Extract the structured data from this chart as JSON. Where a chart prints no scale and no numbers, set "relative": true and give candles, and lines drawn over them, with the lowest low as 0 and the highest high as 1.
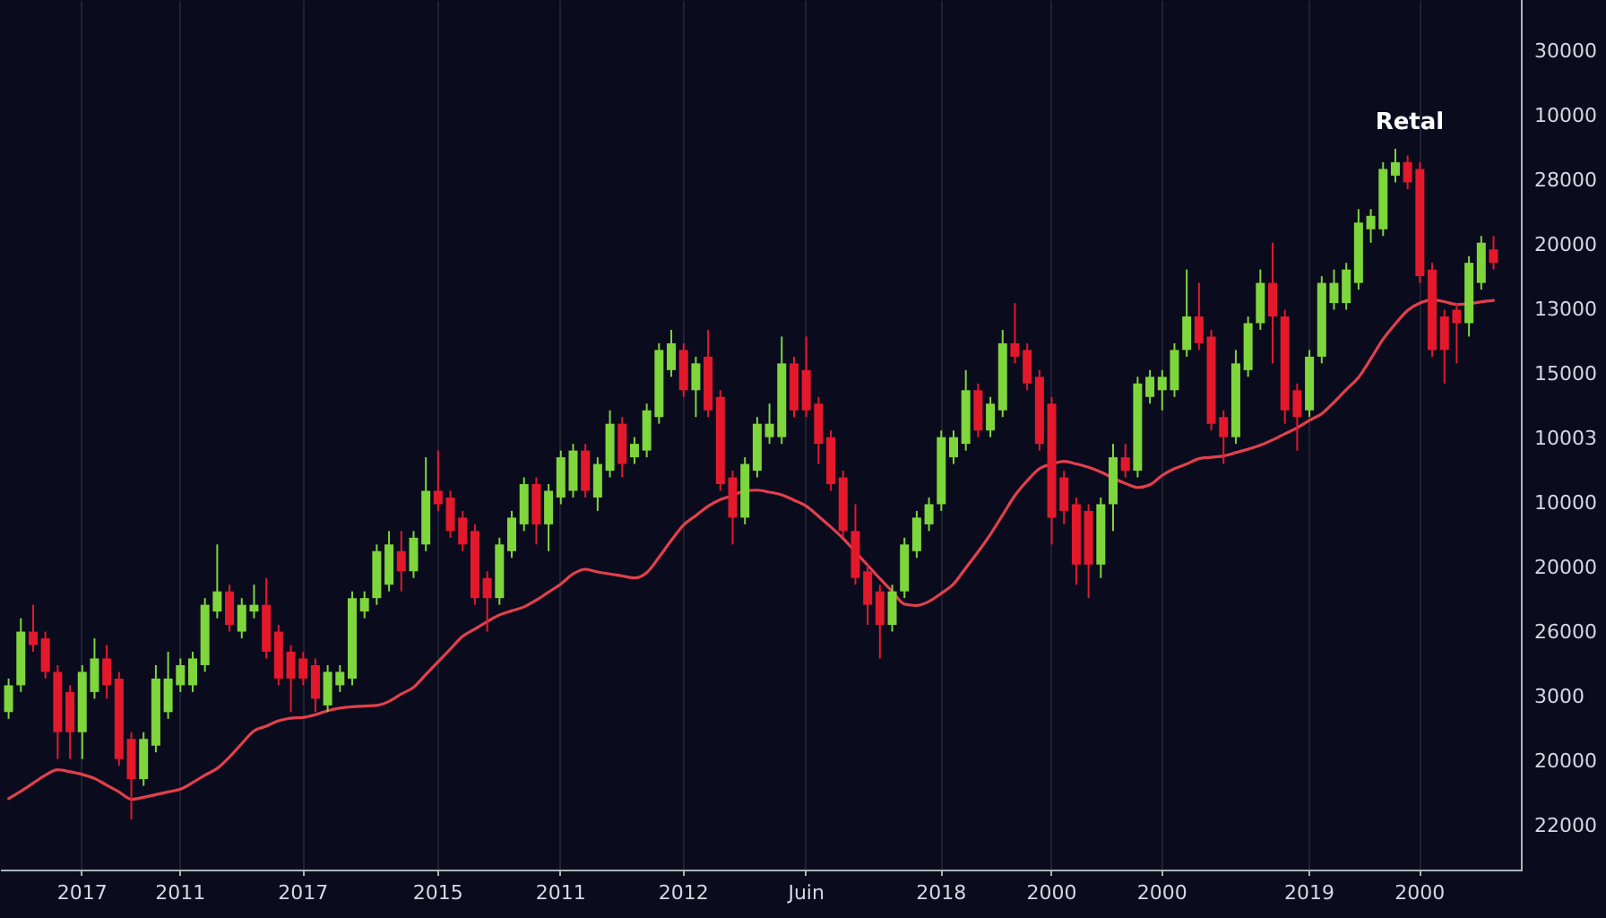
{
  "chart_data": {
    "type": "candlestick",
    "relative": true,
    "categories": [
      null,
      null,
      null,
      null,
      null,
      null,
      "2017",
      null,
      null,
      null,
      null,
      null,
      null,
      null,
      "2011",
      null,
      null,
      null,
      null,
      null,
      null,
      null,
      null,
      null,
      "2017",
      null,
      null,
      null,
      null,
      null,
      null,
      null,
      null,
      null,
      null,
      "2015",
      null,
      null,
      null,
      null,
      null,
      null,
      null,
      null,
      null,
      "2011",
      null,
      null,
      null,
      null,
      null,
      null,
      null,
      null,
      null,
      "2012",
      null,
      null,
      null,
      null,
      null,
      null,
      null,
      null,
      null,
      "Juin",
      null,
      null,
      null,
      null,
      null,
      null,
      null,
      null,
      null,
      null,
      "2018",
      null,
      null,
      null,
      null,
      null,
      null,
      null,
      null,
      "2000",
      null,
      null,
      null,
      null,
      null,
      null,
      null,
      null,
      "2000",
      null,
      null,
      null,
      null,
      null,
      null,
      null,
      null,
      null,
      null,
      null,
      "2019",
      null,
      null,
      null,
      null,
      null,
      null,
      null,
      null,
      "2000",
      null,
      null,
      null,
      null,
      null,
      null
    ],
    "ohlc": [
      [
        0.16,
        0.21,
        0.15,
        0.2
      ],
      [
        0.2,
        0.3,
        0.19,
        0.28
      ],
      [
        0.28,
        0.32,
        0.25,
        0.26
      ],
      [
        0.27,
        0.28,
        0.21,
        0.22
      ],
      [
        0.22,
        0.23,
        0.09,
        0.13
      ],
      [
        0.19,
        0.2,
        0.09,
        0.13
      ],
      [
        0.13,
        0.23,
        0.09,
        0.22
      ],
      [
        0.19,
        0.27,
        0.18,
        0.24
      ],
      [
        0.24,
        0.26,
        0.18,
        0.2
      ],
      [
        0.21,
        0.22,
        0.08,
        0.09
      ],
      [
        0.12,
        0.13,
        0,
        0.06
      ],
      [
        0.06,
        0.13,
        0.05,
        0.12
      ],
      [
        0.11,
        0.23,
        0.1,
        0.21
      ],
      [
        0.16,
        0.25,
        0.15,
        0.21
      ],
      [
        0.2,
        0.24,
        0.19,
        0.23
      ],
      [
        0.2,
        0.25,
        0.19,
        0.24
      ],
      [
        0.23,
        0.33,
        0.22,
        0.32
      ],
      [
        0.31,
        0.41,
        0.3,
        0.34
      ],
      [
        0.34,
        0.35,
        0.28,
        0.29
      ],
      [
        0.28,
        0.33,
        0.27,
        0.32
      ],
      [
        0.31,
        0.35,
        0.3,
        0.32
      ],
      [
        0.32,
        0.36,
        0.24,
        0.25
      ],
      [
        0.28,
        0.29,
        0.2,
        0.21
      ],
      [
        0.25,
        0.26,
        0.16,
        0.21
      ],
      [
        0.24,
        0.25,
        0.2,
        0.21
      ],
      [
        0.23,
        0.24,
        0.16,
        0.18
      ],
      [
        0.17,
        0.23,
        0.16,
        0.22
      ],
      [
        0.2,
        0.23,
        0.19,
        0.22
      ],
      [
        0.21,
        0.34,
        0.2,
        0.33
      ],
      [
        0.31,
        0.34,
        0.3,
        0.33
      ],
      [
        0.33,
        0.41,
        0.32,
        0.4
      ],
      [
        0.35,
        0.43,
        0.34,
        0.41
      ],
      [
        0.4,
        0.43,
        0.34,
        0.37
      ],
      [
        0.37,
        0.43,
        0.36,
        0.42
      ],
      [
        0.41,
        0.54,
        0.4,
        0.49
      ],
      [
        0.49,
        0.55,
        0.46,
        0.47
      ],
      [
        0.48,
        0.49,
        0.42,
        0.43
      ],
      [
        0.45,
        0.46,
        0.4,
        0.41
      ],
      [
        0.43,
        0.44,
        0.32,
        0.33
      ],
      [
        0.36,
        0.37,
        0.28,
        0.33
      ],
      [
        0.33,
        0.42,
        0.32,
        0.41
      ],
      [
        0.4,
        0.46,
        0.39,
        0.45
      ],
      [
        0.44,
        0.51,
        0.43,
        0.5
      ],
      [
        0.5,
        0.51,
        0.41,
        0.44
      ],
      [
        0.44,
        0.5,
        0.4,
        0.49
      ],
      [
        0.48,
        0.55,
        0.47,
        0.54
      ],
      [
        0.49,
        0.56,
        0.48,
        0.55
      ],
      [
        0.55,
        0.56,
        0.48,
        0.49
      ],
      [
        0.48,
        0.54,
        0.46,
        0.53
      ],
      [
        0.52,
        0.61,
        0.51,
        0.59
      ],
      [
        0.59,
        0.6,
        0.51,
        0.53
      ],
      [
        0.54,
        0.57,
        0.53,
        0.56
      ],
      [
        0.55,
        0.62,
        0.54,
        0.61
      ],
      [
        0.6,
        0.71,
        0.59,
        0.7
      ],
      [
        0.67,
        0.73,
        0.66,
        0.71
      ],
      [
        0.7,
        0.71,
        0.63,
        0.64
      ],
      [
        0.64,
        0.69,
        0.6,
        0.68
      ],
      [
        0.69,
        0.73,
        0.6,
        0.61
      ],
      [
        0.63,
        0.64,
        0.49,
        0.5
      ],
      [
        0.51,
        0.52,
        0.41,
        0.45
      ],
      [
        0.45,
        0.54,
        0.44,
        0.53
      ],
      [
        0.52,
        0.6,
        0.51,
        0.59
      ],
      [
        0.57,
        0.62,
        0.56,
        0.59
      ],
      [
        0.57,
        0.72,
        0.56,
        0.68
      ],
      [
        0.68,
        0.69,
        0.6,
        0.61
      ],
      [
        0.67,
        0.72,
        0.6,
        0.61
      ],
      [
        0.62,
        0.63,
        0.53,
        0.56
      ],
      [
        0.57,
        0.58,
        0.49,
        0.5
      ],
      [
        0.51,
        0.52,
        0.42,
        0.43
      ],
      [
        0.43,
        0.47,
        0.35,
        0.36
      ],
      [
        0.37,
        0.38,
        0.29,
        0.32
      ],
      [
        0.34,
        0.35,
        0.24,
        0.29
      ],
      [
        0.29,
        0.35,
        0.28,
        0.34
      ],
      [
        0.34,
        0.42,
        0.33,
        0.41
      ],
      [
        0.4,
        0.46,
        0.39,
        0.45
      ],
      [
        0.44,
        0.48,
        0.43,
        0.47
      ],
      [
        0.47,
        0.58,
        0.46,
        0.57
      ],
      [
        0.54,
        0.58,
        0.53,
        0.57
      ],
      [
        0.56,
        0.67,
        0.55,
        0.64
      ],
      [
        0.64,
        0.65,
        0.57,
        0.58
      ],
      [
        0.58,
        0.63,
        0.57,
        0.62
      ],
      [
        0.61,
        0.73,
        0.6,
        0.71
      ],
      [
        0.71,
        0.77,
        0.68,
        0.69
      ],
      [
        0.7,
        0.71,
        0.64,
        0.65
      ],
      [
        0.66,
        0.67,
        0.55,
        0.56
      ],
      [
        0.62,
        0.63,
        0.41,
        0.45
      ],
      [
        0.51,
        0.52,
        0.44,
        0.46
      ],
      [
        0.47,
        0.48,
        0.35,
        0.38
      ],
      [
        0.46,
        0.47,
        0.33,
        0.38
      ],
      [
        0.38,
        0.48,
        0.36,
        0.47
      ],
      [
        0.47,
        0.56,
        0.43,
        0.54
      ],
      [
        0.54,
        0.56,
        0.51,
        0.52
      ],
      [
        0.52,
        0.66,
        0.51,
        0.65
      ],
      [
        0.63,
        0.67,
        0.62,
        0.66
      ],
      [
        0.64,
        0.67,
        0.61,
        0.66
      ],
      [
        0.64,
        0.71,
        0.63,
        0.7
      ],
      [
        0.7,
        0.82,
        0.69,
        0.75
      ],
      [
        0.75,
        0.8,
        0.7,
        0.71
      ],
      [
        0.72,
        0.73,
        0.58,
        0.59
      ],
      [
        0.6,
        0.61,
        0.53,
        0.57
      ],
      [
        0.57,
        0.7,
        0.56,
        0.68
      ],
      [
        0.67,
        0.75,
        0.66,
        0.74
      ],
      [
        0.74,
        0.82,
        0.73,
        0.8
      ],
      [
        0.8,
        0.86,
        0.68,
        0.75
      ],
      [
        0.75,
        0.76,
        0.59,
        0.61
      ],
      [
        0.64,
        0.65,
        0.55,
        0.6
      ],
      [
        0.61,
        0.7,
        0.6,
        0.69
      ],
      [
        0.69,
        0.81,
        0.68,
        0.8
      ],
      [
        0.77,
        0.82,
        0.76,
        0.8
      ],
      [
        0.77,
        0.83,
        0.76,
        0.82
      ],
      [
        0.8,
        0.91,
        0.79,
        0.89
      ],
      [
        0.88,
        0.91,
        0.86,
        0.9
      ],
      [
        0.88,
        0.98,
        0.87,
        0.97
      ],
      [
        0.96,
        1,
        0.95,
        0.98
      ],
      [
        0.98,
        0.99,
        0.94,
        0.95
      ],
      [
        0.97,
        0.98,
        0.8,
        0.81
      ],
      [
        0.82,
        0.83,
        0.69,
        0.7
      ],
      [
        0.75,
        0.76,
        0.65,
        0.7
      ],
      [
        0.76,
        0.77,
        0.68,
        0.74
      ],
      [
        0.74,
        0.84,
        0.72,
        0.83
      ],
      [
        0.8,
        0.87,
        0.79,
        0.86
      ],
      [
        0.85,
        0.87,
        0.82,
        0.83
      ]
    ],
    "colors": [
      "#7ed63c",
      "#7ed63c",
      "#e3192b",
      "#e3192b",
      "#e3192b",
      "#e3192b",
      "#7ed63c",
      "#7ed63c",
      "#e3192b",
      "#e3192b",
      "#e3192b",
      "#7ed63c",
      "#7ed63c",
      "#7ed63c",
      "#7ed63c",
      "#7ed63c",
      "#7ed63c",
      "#7ed63c",
      "#e3192b",
      "#7ed63c",
      "#7ed63c",
      "#e3192b",
      "#e3192b",
      "#e3192b",
      "#e3192b",
      "#e3192b",
      "#7ed63c",
      "#7ed63c",
      "#7ed63c",
      "#7ed63c",
      "#7ed63c",
      "#7ed63c",
      "#e3192b",
      "#7ed63c",
      "#7ed63c",
      "#e3192b",
      "#e3192b",
      "#e3192b",
      "#e3192b",
      "#e3192b",
      "#7ed63c",
      "#7ed63c",
      "#7ed63c",
      "#e3192b",
      "#7ed63c",
      "#7ed63c",
      "#7ed63c",
      "#e3192b",
      "#7ed63c",
      "#7ed63c",
      "#e3192b",
      "#7ed63c",
      "#7ed63c",
      "#7ed63c",
      "#7ed63c",
      "#e3192b",
      "#7ed63c",
      "#e3192b",
      "#e3192b",
      "#e3192b",
      "#7ed63c",
      "#7ed63c",
      "#7ed63c",
      "#7ed63c",
      "#e3192b",
      "#e3192b",
      "#e3192b",
      "#e3192b",
      "#e3192b",
      "#e3192b",
      "#e3192b",
      "#e3192b",
      "#7ed63c",
      "#7ed63c",
      "#7ed63c",
      "#7ed63c",
      "#7ed63c",
      "#7ed63c",
      "#7ed63c",
      "#e3192b",
      "#7ed63c",
      "#7ed63c",
      "#e3192b",
      "#e3192b",
      "#e3192b",
      "#e3192b",
      "#e3192b",
      "#e3192b",
      "#e3192b",
      "#7ed63c",
      "#7ed63c",
      "#e3192b",
      "#7ed63c",
      "#7ed63c",
      "#7ed63c",
      "#7ed63c",
      "#7ed63c",
      "#e3192b",
      "#e3192b",
      "#e3192b",
      "#7ed63c",
      "#7ed63c",
      "#7ed63c",
      "#e3192b",
      "#e3192b",
      "#e3192b",
      "#7ed63c",
      "#7ed63c",
      "#7ed63c",
      "#7ed63c",
      "#7ed63c",
      "#7ed63c",
      "#7ed63c",
      "#7ed63c",
      "#e3192b",
      "#e3192b",
      "#e3192b",
      "#e3192b",
      "#e3192b",
      "#7ed63c",
      "#7ed63c",
      "#e3192b"
    ],
    "series": [
      {
        "type": "line",
        "color": "#e2404c",
        "values": [
          0.031,
          0.042,
          0.054,
          0.066,
          0.074,
          0.071,
          0.067,
          0.061,
          0.051,
          0.041,
          0.03,
          0.033,
          0.037,
          0.041,
          0.045,
          0.055,
          0.066,
          0.076,
          0.093,
          0.113,
          0.132,
          0.139,
          0.147,
          0.151,
          0.152,
          0.156,
          0.162,
          0.166,
          0.168,
          0.169,
          0.17,
          0.176,
          0.187,
          0.197,
          0.216,
          0.235,
          0.254,
          0.273,
          0.284,
          0.295,
          0.305,
          0.311,
          0.317,
          0.327,
          0.339,
          0.351,
          0.366,
          0.373,
          0.369,
          0.366,
          0.363,
          0.36,
          0.368,
          0.391,
          0.416,
          0.439,
          0.453,
          0.467,
          0.477,
          0.483,
          0.49,
          0.491,
          0.488,
          0.484,
          0.476,
          0.467,
          0.452,
          0.436,
          0.419,
          0.399,
          0.379,
          0.359,
          0.34,
          0.321,
          0.319,
          0.325,
          0.337,
          0.351,
          0.375,
          0.399,
          0.425,
          0.454,
          0.483,
          0.505,
          0.523,
          0.53,
          0.534,
          0.53,
          0.525,
          0.518,
          0.509,
          0.501,
          0.495,
          0.499,
          0.513,
          0.523,
          0.53,
          0.538,
          0.54,
          0.542,
          0.547,
          0.552,
          0.558,
          0.566,
          0.575,
          0.584,
          0.595,
          0.605,
          0.622,
          0.641,
          0.659,
          0.687,
          0.716,
          0.739,
          0.759,
          0.77,
          0.775,
          0.772,
          0.768,
          0.769,
          0.772,
          0.774
        ]
      }
    ],
    "grid": "x",
    "annotations": [
      "Retal",
      "30000",
      "10000",
      "28000",
      "20000",
      "13000",
      "15000",
      "10003",
      "10000",
      "20000",
      "26000",
      "3000",
      "20000",
      "22000"
    ]
  }
}
